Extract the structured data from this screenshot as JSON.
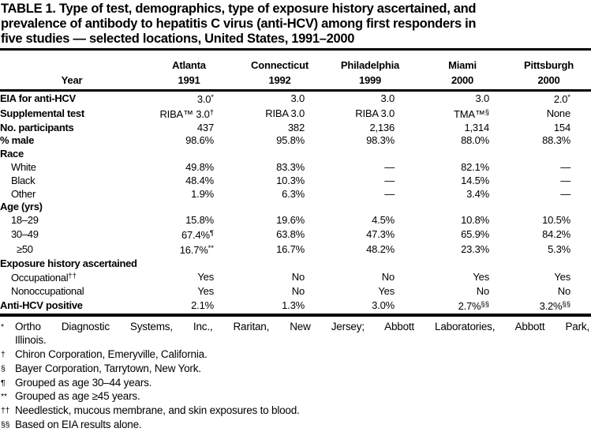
{
  "colors": {
    "text": "#000000",
    "background": "#ffffff"
  },
  "title": {
    "lines": [
      "TABLE 1. Type of test, demographics, type of exposure history ascertained, and",
      "prevalence of antibody to hepatitis C virus (anti-HCV) among first responders in",
      "five studies — selected locations, United States, 1991–2000"
    ]
  },
  "table": {
    "year_row_label": "Year",
    "columns": [
      {
        "city": "Atlanta",
        "year": "1991"
      },
      {
        "city": "Connecticut",
        "year": "1992"
      },
      {
        "city": "Philadelphia",
        "year": "1999"
      },
      {
        "city": "Miami",
        "year": "2000"
      },
      {
        "city": "Pittsburgh",
        "year": "2000"
      }
    ],
    "rows": [
      {
        "label": "EIA for anti-HCV",
        "bold": true,
        "indent": 0,
        "values": [
          "3.0^*",
          "3.0",
          "3.0",
          "3.0",
          "2.0^*"
        ]
      },
      {
        "label": "Supplemental test",
        "bold": true,
        "indent": 0,
        "values": [
          "RIBA™ 3.0^†",
          "RIBA 3.0",
          "RIBA 3.0",
          "TMA™^§",
          "None"
        ]
      },
      {
        "label": "No. participants",
        "bold": true,
        "indent": 0,
        "values": [
          "437",
          "382",
          "2,136",
          "1,314",
          "154"
        ]
      },
      {
        "label": "% male",
        "bold": true,
        "indent": 0,
        "values": [
          "98.6%",
          "95.8%",
          "98.3%",
          "88.0%",
          "88.3%"
        ]
      },
      {
        "label": "Race",
        "bold": true,
        "indent": 0,
        "values": [
          "",
          "",
          "",
          "",
          ""
        ]
      },
      {
        "label": "White",
        "bold": false,
        "indent": 1,
        "values": [
          "49.8%",
          "83.3%",
          "—",
          "82.1%",
          "—"
        ]
      },
      {
        "label": "Black",
        "bold": false,
        "indent": 1,
        "values": [
          "48.4%",
          "10.3%",
          "—",
          "14.5%",
          "—"
        ]
      },
      {
        "label": "Other",
        "bold": false,
        "indent": 1,
        "values": [
          "1.9%",
          "6.3%",
          "—",
          "3.4%",
          "—"
        ]
      },
      {
        "label": "Age (yrs)",
        "bold": true,
        "indent": 0,
        "values": [
          "",
          "",
          "",
          "",
          ""
        ]
      },
      {
        "label": "18–29",
        "bold": false,
        "indent": 1,
        "values": [
          "15.8%",
          "19.6%",
          "4.5%",
          "10.8%",
          "10.5%"
        ]
      },
      {
        "label": "30–49",
        "bold": false,
        "indent": 1,
        "values": [
          "67.4%^¶",
          "63.8%",
          "47.3%",
          "65.9%",
          "84.2%"
        ]
      },
      {
        "label": "≥50",
        "bold": false,
        "indent": 2,
        "values": [
          "16.7%^**",
          "16.7%",
          "48.2%",
          "23.3%",
          "5.3%"
        ]
      },
      {
        "label": "Exposure history ascertained",
        "bold": true,
        "indent": 0,
        "values": [
          "",
          "",
          "",
          "",
          ""
        ]
      },
      {
        "label": "Occupational^††",
        "bold": false,
        "indent": 1,
        "values": [
          "Yes",
          "No",
          "No",
          "Yes",
          "Yes"
        ]
      },
      {
        "label": "Nonoccupational",
        "bold": false,
        "indent": 1,
        "values": [
          "Yes",
          "No",
          "Yes",
          "No",
          "No"
        ]
      },
      {
        "label": "Anti-HCV positive",
        "bold": true,
        "indent": 0,
        "values": [
          "2.1%",
          "1.3%",
          "3.0%",
          "2.7%^§§",
          "3.2%^§§"
        ]
      }
    ]
  },
  "footnotes": [
    {
      "marker": "*",
      "lines": [
        "Ortho Diagnostic Systems, Inc., Raritan, New Jersey; Abbott Laboratories, Abbott Park,",
        "Illinois."
      ]
    },
    {
      "marker": "†",
      "lines": [
        "Chiron Corporation, Emeryville, California."
      ]
    },
    {
      "marker": "§",
      "lines": [
        "Bayer Corporation, Tarrytown, New York."
      ]
    },
    {
      "marker": "¶",
      "lines": [
        "Grouped as age 30–44 years."
      ]
    },
    {
      "marker": "**",
      "lines": [
        "Grouped as age ≥45 years."
      ]
    },
    {
      "marker": "††",
      "lines": [
        "Needlestick, mucous membrane, and skin exposures to blood."
      ]
    },
    {
      "marker": "§§",
      "lines": [
        "Based on EIA results alone."
      ]
    }
  ]
}
